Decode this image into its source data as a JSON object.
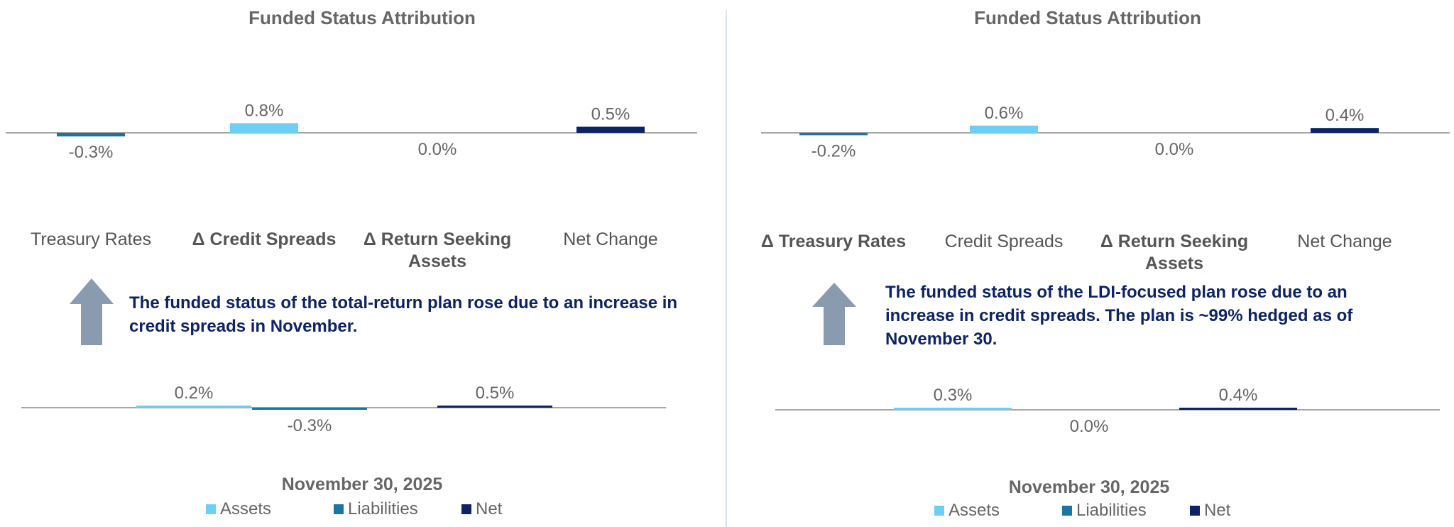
{
  "colors": {
    "assets": "#6ccff6",
    "liabilities": "#1b75a3",
    "net": "#0c2366",
    "axis": "#888888",
    "arrow": "#8a9bb0"
  },
  "legend": [
    {
      "key": "assets",
      "label": "Assets"
    },
    {
      "key": "liabilities",
      "label": "Liabilities"
    },
    {
      "key": "net",
      "label": "Net"
    }
  ],
  "panels": [
    {
      "title": "Funded Status Attribution",
      "note": "The funded status of the total-return plan rose due to an increase in credit spreads in November.",
      "date_label": "November 30, 2025",
      "note_icon": "up-arrow-icon"
    },
    {
      "title": "Funded Status Attribution",
      "note": "The funded status of the LDI-focused plan rose due to an increase in credit spreads. The plan is ~99% hedged as of November 30.",
      "date_label": "November 30, 2025",
      "note_icon": "up-arrow-icon"
    }
  ],
  "chart_data": [
    {
      "type": "bar",
      "title": "Funded Status Attribution",
      "categories": [
        "Treasury Rates",
        "Δ Credit Spreads",
        "Δ Return Seeking Assets",
        "Net Change"
      ],
      "bold_categories": [
        false,
        true,
        true,
        false
      ],
      "values": [
        -0.3,
        0.8,
        0.0,
        0.5
      ],
      "labels": [
        "-0.3%",
        "0.8%",
        "0.0%",
        "0.5%"
      ],
      "bar_series": [
        "liabilities",
        "assets",
        "assets",
        "net"
      ],
      "unit": "%"
    },
    {
      "type": "bar",
      "title": "",
      "categories": [
        "Assets",
        "Liabilities",
        "Net"
      ],
      "values": [
        0.2,
        -0.3,
        0.5
      ],
      "labels": [
        "0.2%",
        "-0.3%",
        "0.5%"
      ],
      "bar_series": [
        "assets",
        "liabilities",
        "net"
      ],
      "xlabel": "November 30, 2025",
      "legend": "bottom",
      "unit": "%"
    },
    {
      "type": "bar",
      "title": "Funded Status Attribution",
      "categories": [
        "Δ Treasury Rates",
        "Credit Spreads",
        "Δ Return Seeking Assets",
        "Net Change"
      ],
      "bold_categories": [
        true,
        false,
        true,
        false
      ],
      "values": [
        -0.2,
        0.6,
        0.0,
        0.4
      ],
      "labels": [
        "-0.2%",
        "0.6%",
        "0.0%",
        "0.4%"
      ],
      "bar_series": [
        "liabilities",
        "assets",
        "assets",
        "net"
      ],
      "unit": "%"
    },
    {
      "type": "bar",
      "title": "",
      "categories": [
        "Assets",
        "Liabilities",
        "Net"
      ],
      "values": [
        0.3,
        0.0,
        0.4
      ],
      "labels": [
        "0.3%",
        "0.0%",
        "0.4%"
      ],
      "bar_series": [
        "assets",
        "liabilities",
        "net"
      ],
      "xlabel": "November 30, 2025",
      "legend": "bottom",
      "unit": "%"
    }
  ]
}
